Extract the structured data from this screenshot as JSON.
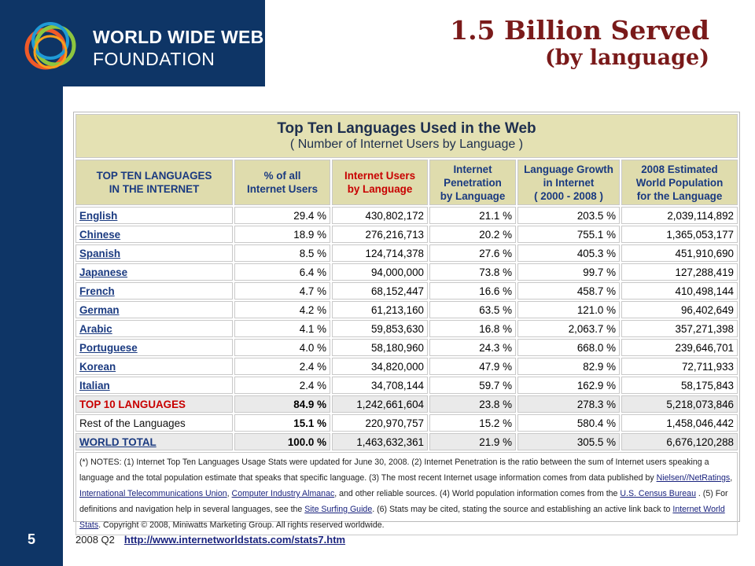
{
  "logo": {
    "line1": "WORLD WIDE WEB",
    "line2": "FOUNDATION",
    "ring_colors": [
      "#f05a28",
      "#8dc63f",
      "#1f9ad6",
      "#f15a24"
    ]
  },
  "title": {
    "line1": "1.5 Billion Served",
    "line2": "(by language)"
  },
  "page_number": "5",
  "footer": {
    "label": "2008 Q2",
    "link": "http://www.internetworldstats.com/stats7.htm"
  },
  "table": {
    "title": "Top Ten Languages Used in the Web",
    "subtitle": "( Number of Internet Users by Language )",
    "headers": [
      [
        "TOP TEN LANGUAGES",
        "IN THE INTERNET"
      ],
      [
        "% of all",
        "Internet Users"
      ],
      [
        "Internet Users",
        "by Language"
      ],
      [
        "Internet",
        "Penetration",
        "by Language"
      ],
      [
        "Language Growth",
        "in Internet",
        "( 2000 - 2008 )"
      ],
      [
        "2008 Estimated",
        "World Population",
        "for the Language"
      ]
    ],
    "rows": [
      {
        "language": "English",
        "pct": "29.4 %",
        "users": "430,802,172",
        "penetration": "21.1 %",
        "growth": "203.5 %",
        "population": "2,039,114,892"
      },
      {
        "language": "Chinese",
        "pct": "18.9 %",
        "users": "276,216,713",
        "penetration": "20.2 %",
        "growth": "755.1 %",
        "population": "1,365,053,177"
      },
      {
        "language": "Spanish",
        "pct": "8.5 %",
        "users": "124,714,378",
        "penetration": "27.6 %",
        "growth": "405.3 %",
        "population": "451,910,690"
      },
      {
        "language": "Japanese",
        "pct": "6.4 %",
        "users": "94,000,000",
        "penetration": "73.8 %",
        "growth": "99.7 %",
        "population": "127,288,419"
      },
      {
        "language": "French",
        "pct": "4.7 %",
        "users": "68,152,447",
        "penetration": "16.6 %",
        "growth": "458.7 %",
        "population": "410,498,144"
      },
      {
        "language": "German",
        "pct": "4.2 %",
        "users": "61,213,160",
        "penetration": "63.5 %",
        "growth": "121.0 %",
        "population": "96,402,649"
      },
      {
        "language": "Arabic",
        "pct": "4.1 %",
        "users": "59,853,630",
        "penetration": "16.8 %",
        "growth": "2,063.7 %",
        "population": "357,271,398"
      },
      {
        "language": "Portuguese",
        "pct": "4.0 %",
        "users": "58,180,960",
        "penetration": "24.3 %",
        "growth": "668.0 %",
        "population": "239,646,701"
      },
      {
        "language": "Korean",
        "pct": "2.4 %",
        "users": "34,820,000",
        "penetration": "47.9 %",
        "growth": "82.9 %",
        "population": "72,711,933"
      },
      {
        "language": "Italian",
        "pct": "2.4 %",
        "users": "34,708,144",
        "penetration": "59.7 %",
        "growth": "162.9 %",
        "population": "58,175,843"
      }
    ],
    "top10": {
      "label": "TOP 10 LANGUAGES",
      "pct": "84.9 %",
      "users": "1,242,661,604",
      "penetration": "23.8 %",
      "growth": "278.3 %",
      "population": "5,218,073,846"
    },
    "rest": {
      "label": "Rest of the Languages",
      "pct": "15.1 %",
      "users": "220,970,757",
      "penetration": "15.2 %",
      "growth": "580.4 %",
      "population": "1,458,046,442"
    },
    "world": {
      "label": "WORLD TOTAL",
      "pct": "100.0 %",
      "users": "1,463,632,361",
      "penetration": "21.9 %",
      "growth": "305.5 %",
      "population": "6,676,120,288"
    },
    "notes": {
      "p1": "(*) NOTES: (1) Internet Top Ten Languages Usage Stats were updated for June 30, 2008. (2) Internet Penetration is the ratio between the sum of Internet users speaking a language and the total population estimate that speaks that specific language. (3) The most recent Internet usage information comes from data published by ",
      "link_nielsen": "Nielsen//NetRatings",
      "sep1": ", ",
      "link_itu": "International Telecommunications Union",
      "sep2": ", ",
      "link_cia": "Computer Industry Almanac",
      "p2": ", and other reliable sources. (4) World population information comes from the ",
      "link_census": "U.S. Census Bureau",
      "p3": " . (5) For definitions and navigation help in several languages, see the ",
      "link_surfing": "Site Surfing Guide",
      "p4": ". (6) Stats may be cited, stating the source and establishing an active link back to ",
      "link_iws": "Internet World Stats",
      "p5": ". Copyright © 2008, Miniwatts Marketing Group. All rights reserved worldwide."
    }
  }
}
